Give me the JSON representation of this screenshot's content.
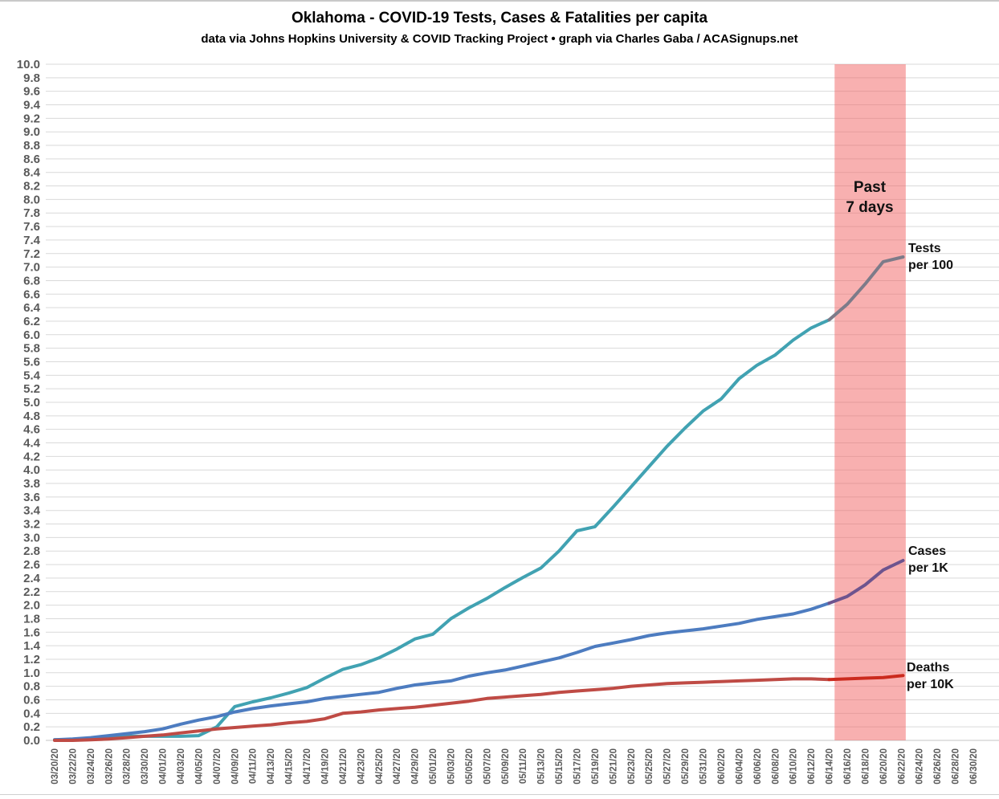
{
  "header": {
    "title": "Oklahoma - COVID-19 Tests, Cases & Fatalities per capita",
    "subtitle": "data via Johns Hopkins University & COVID Tracking Project • graph via Charles Gaba / ACASignups.net"
  },
  "annotations": {
    "past7_label": "Past\n7 days",
    "tests_label": "Tests\nper 100",
    "cases_label": "Cases\nper 1K",
    "deaths_label": "Deaths\nper 10K"
  },
  "colors": {
    "tests": "#41a2b2",
    "tests_recent": "#7d7b89",
    "cases": "#4d7cc0",
    "cases_recent": "#6e548e",
    "deaths": "#bf4b45",
    "deaths_recent": "#cb2b1e",
    "band_fill": "rgba(242,98,98,0.5)",
    "grid": "#d9d9d9",
    "tick_text": "#595959",
    "title_text": "#000000"
  },
  "chart_data": {
    "type": "line",
    "title": "Oklahoma - COVID-19 Tests, Cases & Fatalities per capita",
    "subtitle": "data via Johns Hopkins University & COVID Tracking Project • graph via Charles Gaba / ACASignups.net",
    "xlabel": "",
    "ylabel": "",
    "ylim": [
      0.0,
      10.0
    ],
    "y_tick_step": 0.2,
    "grid": true,
    "legend_position": "inline-right",
    "y_ticks": [
      "10.0",
      "9.8",
      "9.6",
      "9.4",
      "9.2",
      "9.0",
      "8.8",
      "8.6",
      "8.4",
      "8.2",
      "8.0",
      "7.8",
      "7.6",
      "7.4",
      "7.2",
      "7.0",
      "6.8",
      "6.6",
      "6.4",
      "6.2",
      "6.0",
      "5.8",
      "5.6",
      "5.4",
      "5.2",
      "5.0",
      "4.8",
      "4.6",
      "4.4",
      "4.2",
      "4.0",
      "3.8",
      "3.6",
      "3.4",
      "3.2",
      "3.0",
      "2.8",
      "2.6",
      "2.4",
      "2.2",
      "2.0",
      "1.8",
      "1.6",
      "1.4",
      "1.2",
      "1.0",
      "0.8",
      "0.6",
      "0.4",
      "0.2",
      "0.0"
    ],
    "x_ticks": [
      "03/20/20",
      "03/22/20",
      "03/24/20",
      "03/26/20",
      "03/28/20",
      "03/30/20",
      "04/01/20",
      "04/03/20",
      "04/05/20",
      "04/07/20",
      "04/09/20",
      "04/11/20",
      "04/13/20",
      "04/15/20",
      "04/17/20",
      "04/19/20",
      "04/21/20",
      "04/23/20",
      "04/25/20",
      "04/27/20",
      "04/29/20",
      "05/01/20",
      "05/03/20",
      "05/05/20",
      "05/07/20",
      "05/09/20",
      "05/11/20",
      "05/13/20",
      "05/15/20",
      "05/17/20",
      "05/19/20",
      "05/21/20",
      "05/23/20",
      "05/25/20",
      "05/27/20",
      "05/29/20",
      "05/31/20",
      "06/02/20",
      "06/04/20",
      "06/06/20",
      "06/08/20",
      "06/10/20",
      "06/12/20",
      "06/14/20",
      "06/16/20",
      "06/18/20",
      "06/20/20",
      "06/22/20",
      "06/24/20",
      "06/26/20",
      "06/28/20",
      "06/30/20"
    ],
    "x_tick_interval_days": 2,
    "x_axis_total_days": 102,
    "dates": [
      "03/20/20",
      "03/22/20",
      "03/24/20",
      "03/26/20",
      "03/28/20",
      "03/30/20",
      "04/01/20",
      "04/03/20",
      "04/05/20",
      "04/07/20",
      "04/09/20",
      "04/11/20",
      "04/13/20",
      "04/15/20",
      "04/17/20",
      "04/19/20",
      "04/21/20",
      "04/23/20",
      "04/25/20",
      "04/27/20",
      "04/29/20",
      "05/01/20",
      "05/03/20",
      "05/05/20",
      "05/07/20",
      "05/09/20",
      "05/11/20",
      "05/13/20",
      "05/15/20",
      "05/17/20",
      "05/19/20",
      "05/21/20",
      "05/23/20",
      "05/25/20",
      "05/27/20",
      "05/29/20",
      "05/31/20",
      "06/02/20",
      "06/04/20",
      "06/06/20",
      "06/08/20",
      "06/10/20",
      "06/12/20",
      "06/14/20",
      "06/16/20",
      "06/18/20",
      "06/20/20",
      "06/22/20"
    ],
    "x_days": [
      0,
      2,
      4,
      6,
      8,
      10,
      12,
      14,
      16,
      18,
      20,
      22,
      24,
      26,
      28,
      30,
      32,
      34,
      36,
      38,
      40,
      42,
      44,
      46,
      48,
      50,
      52,
      54,
      56,
      58,
      60,
      62,
      64,
      66,
      68,
      70,
      72,
      74,
      76,
      78,
      80,
      82,
      84,
      86,
      88,
      90,
      92,
      94.2
    ],
    "recent_split_index": 43,
    "series": [
      {
        "name": "Tests per 100",
        "values": [
          0.01,
          0.01,
          0.02,
          0.05,
          0.06,
          0.06,
          0.06,
          0.06,
          0.07,
          0.2,
          0.5,
          0.57,
          0.63,
          0.7,
          0.78,
          0.92,
          1.05,
          1.12,
          1.22,
          1.35,
          1.5,
          1.57,
          1.8,
          1.96,
          2.1,
          2.26,
          2.41,
          2.55,
          2.8,
          3.1,
          3.16,
          3.45,
          3.75,
          4.05,
          4.35,
          4.62,
          4.87,
          5.05,
          5.35,
          5.55,
          5.7,
          5.92,
          6.1,
          6.22,
          6.45,
          6.75,
          7.08,
          7.15
        ],
        "color_key": "tests"
      },
      {
        "name": "Cases per 1K",
        "values": [
          0.01,
          0.02,
          0.04,
          0.07,
          0.1,
          0.13,
          0.17,
          0.24,
          0.3,
          0.35,
          0.42,
          0.47,
          0.51,
          0.54,
          0.57,
          0.62,
          0.65,
          0.68,
          0.71,
          0.77,
          0.82,
          0.85,
          0.88,
          0.95,
          1.0,
          1.04,
          1.1,
          1.16,
          1.22,
          1.3,
          1.39,
          1.44,
          1.49,
          1.55,
          1.59,
          1.62,
          1.65,
          1.69,
          1.73,
          1.79,
          1.83,
          1.87,
          1.94,
          2.03,
          2.13,
          2.3,
          2.52,
          2.66
        ],
        "color_key": "cases"
      },
      {
        "name": "Deaths per 10K",
        "values": [
          0.0,
          0.0,
          0.01,
          0.02,
          0.04,
          0.06,
          0.08,
          0.11,
          0.14,
          0.17,
          0.19,
          0.21,
          0.23,
          0.26,
          0.28,
          0.32,
          0.4,
          0.42,
          0.45,
          0.47,
          0.49,
          0.52,
          0.55,
          0.58,
          0.62,
          0.64,
          0.66,
          0.68,
          0.71,
          0.73,
          0.75,
          0.77,
          0.8,
          0.82,
          0.84,
          0.85,
          0.86,
          0.87,
          0.88,
          0.89,
          0.9,
          0.91,
          0.91,
          0.9,
          0.91,
          0.92,
          0.93,
          0.96
        ],
        "color_key": "deaths"
      }
    ],
    "highlight_band": {
      "label": "Past\n7 days",
      "start_day": 86.6,
      "end_day": 94.5
    }
  }
}
